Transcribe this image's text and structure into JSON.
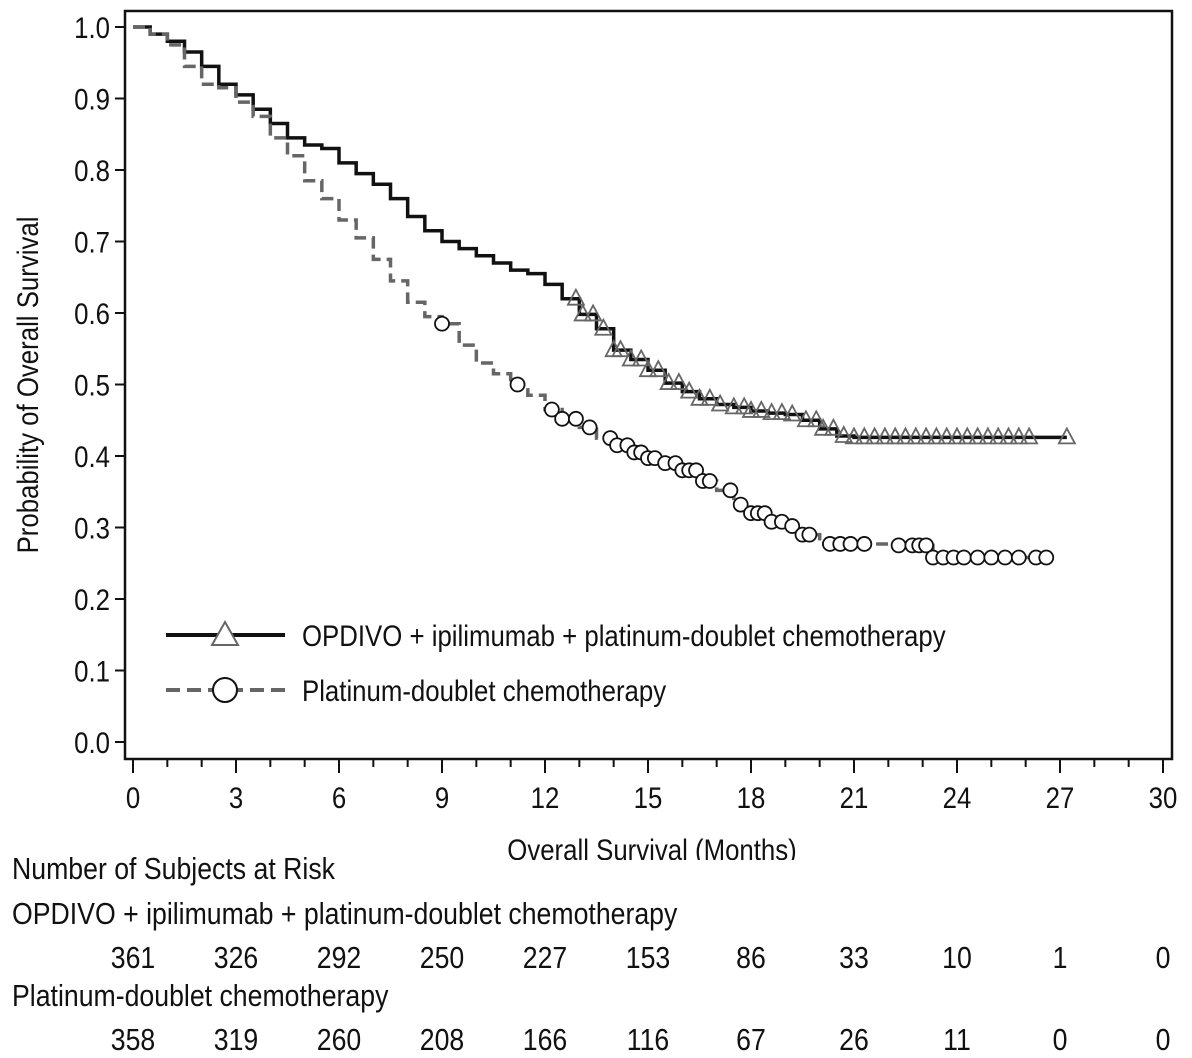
{
  "chart_data": {
    "type": "line",
    "title": "",
    "xlabel": "Overall Survival (Months)",
    "ylabel": "Probability of Overall Survival",
    "xlim": [
      0,
      30
    ],
    "ylim": [
      0,
      1.0
    ],
    "x_ticks": [
      0,
      3,
      6,
      9,
      12,
      15,
      18,
      21,
      24,
      27,
      30
    ],
    "x_tick_labels": [
      "0",
      "3",
      "6",
      "9",
      "12",
      "15",
      "18",
      "21",
      "24",
      "27",
      "30"
    ],
    "y_ticks": [
      0,
      0.1,
      0.2,
      0.3,
      0.4,
      0.5,
      0.6,
      0.7,
      0.8,
      0.9,
      1.0
    ],
    "y_tick_labels": [
      "0.0",
      "0.1",
      "0.2",
      "0.3",
      "0.4",
      "0.5",
      "0.6",
      "0.7",
      "0.8",
      "0.9",
      "1.0"
    ],
    "grid": false,
    "legend_position": "lower-left",
    "series": [
      {
        "name": "OPDIVO + ipilimumab + platinum-doublet chemotherapy",
        "color": "#111111",
        "censor_color": "#666666",
        "line_style": "solid",
        "marker": "triangle",
        "points": [
          [
            0,
            1.0
          ],
          [
            0.5,
            0.99
          ],
          [
            1,
            0.98
          ],
          [
            1.5,
            0.965
          ],
          [
            2,
            0.945
          ],
          [
            2.5,
            0.92
          ],
          [
            3,
            0.905
          ],
          [
            3.5,
            0.885
          ],
          [
            4,
            0.865
          ],
          [
            4.5,
            0.845
          ],
          [
            5,
            0.835
          ],
          [
            5.5,
            0.83
          ],
          [
            6,
            0.81
          ],
          [
            6.5,
            0.795
          ],
          [
            7,
            0.78
          ],
          [
            7.5,
            0.76
          ],
          [
            8,
            0.735
          ],
          [
            8.5,
            0.715
          ],
          [
            9,
            0.7
          ],
          [
            9.5,
            0.69
          ],
          [
            10,
            0.68
          ],
          [
            10.5,
            0.67
          ],
          [
            11,
            0.66
          ],
          [
            11.5,
            0.655
          ],
          [
            12,
            0.64
          ],
          [
            12.5,
            0.62
          ],
          [
            13,
            0.598
          ],
          [
            13.5,
            0.578
          ],
          [
            14,
            0.548
          ],
          [
            14.5,
            0.535
          ],
          [
            15,
            0.52
          ],
          [
            15.5,
            0.502
          ],
          [
            16,
            0.49
          ],
          [
            16.5,
            0.48
          ],
          [
            17,
            0.472
          ],
          [
            17.5,
            0.468
          ],
          [
            18,
            0.463
          ],
          [
            18.5,
            0.46
          ],
          [
            19,
            0.458
          ],
          [
            19.5,
            0.45
          ],
          [
            20,
            0.438
          ],
          [
            20.5,
            0.428
          ],
          [
            21,
            0.426
          ],
          [
            27.2,
            0.426
          ]
        ],
        "censored": [
          12.9,
          13.1,
          13.4,
          13.7,
          14.0,
          14.2,
          14.5,
          14.8,
          15.0,
          15.3,
          15.6,
          15.9,
          16.2,
          16.5,
          16.8,
          17.1,
          17.5,
          17.8,
          18.0,
          18.3,
          18.6,
          18.9,
          19.2,
          19.6,
          19.9,
          20.1,
          20.4,
          20.7,
          21.0,
          21.3,
          21.6,
          21.9,
          22.2,
          22.5,
          22.8,
          23.1,
          23.4,
          23.7,
          24.0,
          24.3,
          24.6,
          24.9,
          25.2,
          25.5,
          25.8,
          26.1,
          27.2
        ]
      },
      {
        "name": "Platinum-doublet chemotherapy",
        "color": "#666666",
        "censor_color": "#111111",
        "line_style": "dashed",
        "marker": "circle",
        "points": [
          [
            0,
            1.0
          ],
          [
            0.5,
            0.99
          ],
          [
            1,
            0.975
          ],
          [
            1.5,
            0.945
          ],
          [
            2,
            0.92
          ],
          [
            2.5,
            0.915
          ],
          [
            3,
            0.895
          ],
          [
            3.5,
            0.875
          ],
          [
            4,
            0.845
          ],
          [
            4.5,
            0.82
          ],
          [
            5,
            0.785
          ],
          [
            5.5,
            0.76
          ],
          [
            6,
            0.73
          ],
          [
            6.5,
            0.705
          ],
          [
            7,
            0.675
          ],
          [
            7.5,
            0.645
          ],
          [
            8,
            0.615
          ],
          [
            8.5,
            0.595
          ],
          [
            9,
            0.585
          ],
          [
            9.5,
            0.555
          ],
          [
            10,
            0.53
          ],
          [
            10.5,
            0.515
          ],
          [
            11,
            0.5
          ],
          [
            11.5,
            0.485
          ],
          [
            12,
            0.465
          ],
          [
            12.5,
            0.452
          ],
          [
            13,
            0.44
          ],
          [
            13.5,
            0.425
          ],
          [
            14,
            0.415
          ],
          [
            14.5,
            0.405
          ],
          [
            15,
            0.397
          ],
          [
            15.5,
            0.39
          ],
          [
            16,
            0.38
          ],
          [
            16.5,
            0.365
          ],
          [
            17,
            0.352
          ],
          [
            17.5,
            0.332
          ],
          [
            18,
            0.32
          ],
          [
            18.5,
            0.308
          ],
          [
            19,
            0.302
          ],
          [
            19.5,
            0.29
          ],
          [
            20,
            0.277
          ],
          [
            21,
            0.277
          ],
          [
            22,
            0.275
          ],
          [
            23,
            0.275
          ],
          [
            23.3,
            0.258
          ],
          [
            26.6,
            0.258
          ]
        ],
        "censored": [
          9.0,
          11.2,
          12.2,
          12.5,
          12.9,
          13.3,
          13.9,
          14.1,
          14.4,
          14.6,
          14.8,
          15.0,
          15.2,
          15.5,
          15.8,
          16.0,
          16.2,
          16.4,
          16.6,
          16.8,
          17.4,
          17.7,
          18.0,
          18.2,
          18.4,
          18.6,
          18.9,
          19.2,
          19.5,
          19.7,
          20.3,
          20.6,
          20.9,
          21.3,
          22.3,
          22.7,
          22.9,
          23.1,
          23.3,
          23.6,
          23.9,
          24.2,
          24.6,
          25.0,
          25.4,
          25.8,
          26.3,
          26.6
        ]
      }
    ],
    "risk_table": {
      "heading": "Number of Subjects at Risk",
      "times": [
        0,
        3,
        6,
        9,
        12,
        15,
        18,
        21,
        24,
        27,
        30
      ],
      "groups": [
        {
          "label": "OPDIVO + ipilimumab + platinum-doublet chemotherapy",
          "counts": [
            "361",
            "326",
            "292",
            "250",
            "227",
            "153",
            "86",
            "33",
            "10",
            "1",
            "0"
          ]
        },
        {
          "label": "Platinum-doublet chemotherapy",
          "counts": [
            "358",
            "319",
            "260",
            "208",
            "166",
            "116",
            "67",
            "26",
            "11",
            "0",
            "0"
          ]
        }
      ]
    }
  }
}
